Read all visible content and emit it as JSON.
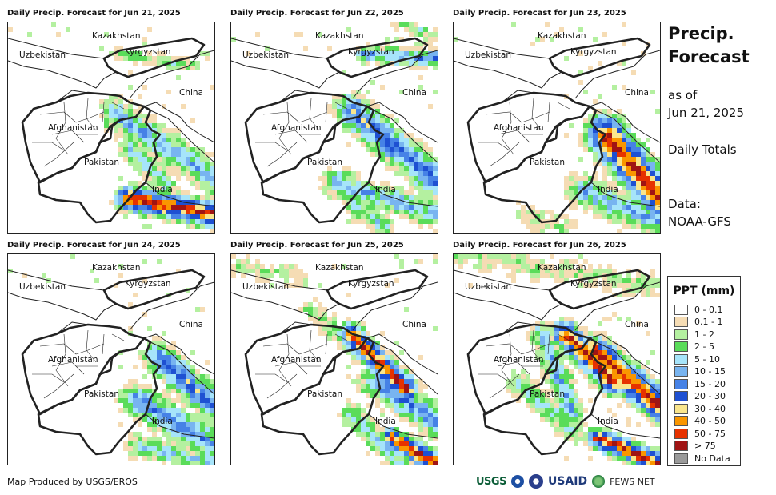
{
  "panels": [
    {
      "title": "Daily Precip. Forecast for Jun 21, 2025"
    },
    {
      "title": "Daily Precip. Forecast for Jun 22, 2025"
    },
    {
      "title": "Daily Precip. Forecast for Jun 23, 2025"
    },
    {
      "title": "Daily Precip. Forecast for Jun 24, 2025"
    },
    {
      "title": "Daily Precip. Forecast for Jun 25, 2025"
    },
    {
      "title": "Daily Precip. Forecast for Jun 26, 2025"
    }
  ],
  "map_labels": {
    "kazakhstan": "Kazakhstan",
    "uzbekistan": "Uzbekistan",
    "kyrgyzstan": "Kyrgyzstan",
    "china": "China",
    "afghanistan": "Afghanistan",
    "pakistan": "Pakistan",
    "india": "India"
  },
  "side": {
    "title_line1": "Precip.",
    "title_line2": "Forecast",
    "asof_line1": "as of",
    "asof_line2": "Jun 21, 2025",
    "totals": "Daily Totals",
    "data_line1": "Data:",
    "data_line2": "NOAA-GFS"
  },
  "legend": {
    "title": "PPT (mm)",
    "items": [
      {
        "label": "0 - 0.1",
        "color": "#ffffff"
      },
      {
        "label": "0.1 - 1",
        "color": "#f5dcb4"
      },
      {
        "label": "1 - 2",
        "color": "#b4f0a0"
      },
      {
        "label": "2 - 5",
        "color": "#5adc5a"
      },
      {
        "label": "5 - 10",
        "color": "#a6e4fa"
      },
      {
        "label": "10 - 15",
        "color": "#78b4f0"
      },
      {
        "label": "15 - 20",
        "color": "#4682e6"
      },
      {
        "label": "20 - 30",
        "color": "#1e50d2"
      },
      {
        "label": "30 - 40",
        "color": "#fae68c"
      },
      {
        "label": "40 - 50",
        "color": "#fa9600"
      },
      {
        "label": "50 - 75",
        "color": "#e63200"
      },
      {
        "label": "> 75",
        "color": "#a01414"
      },
      {
        "label": "No Data",
        "color": "#9a9a9a"
      }
    ]
  },
  "footer": {
    "credit": "Map Produced by USGS/EROS"
  },
  "logos": {
    "usgs": "USGS",
    "usaid": "USAID",
    "fews": "FEWS NET"
  }
}
